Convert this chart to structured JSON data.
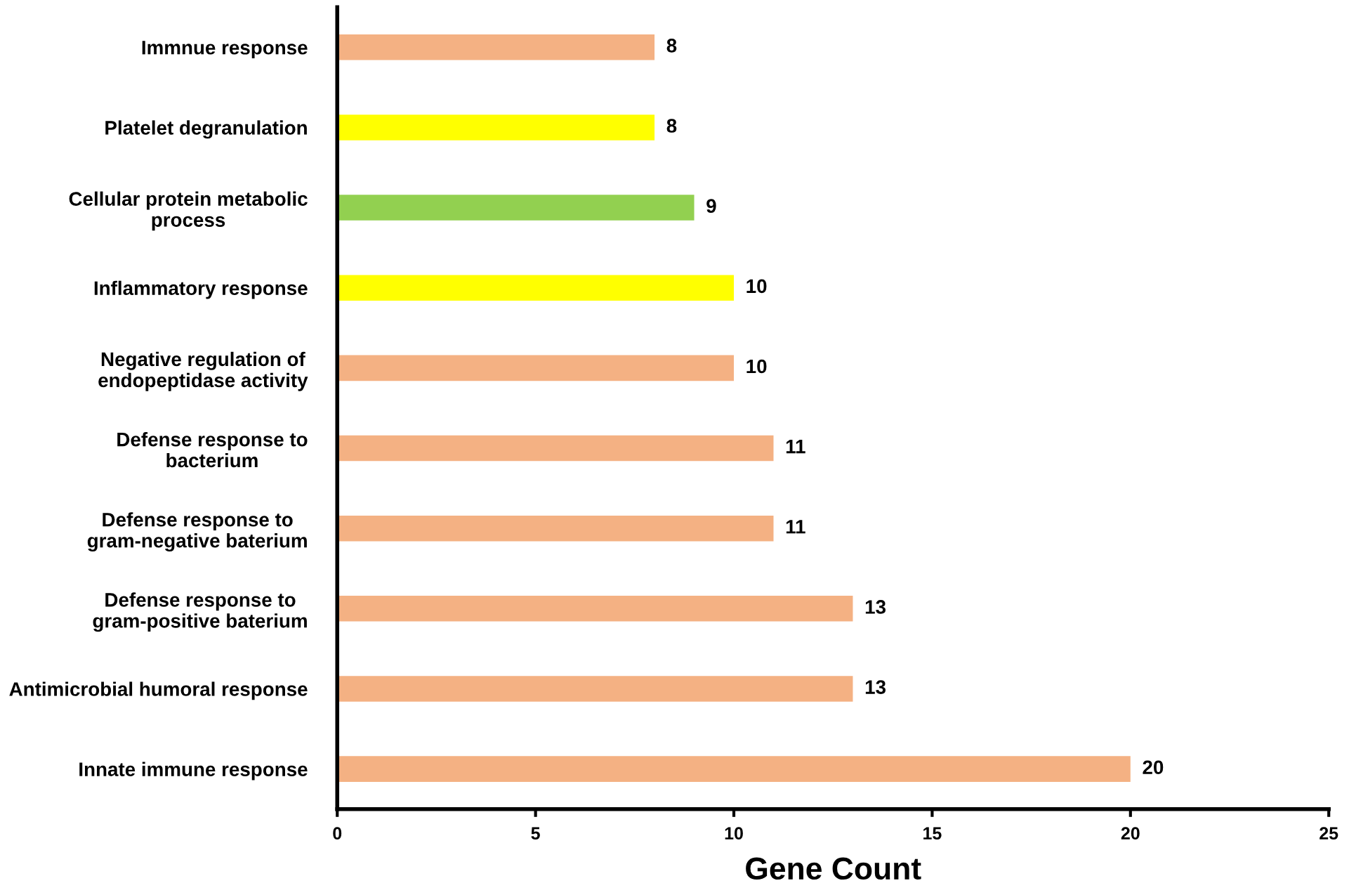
{
  "chart_data": {
    "type": "bar",
    "orientation": "horizontal",
    "xlabel": "Gene Count",
    "categories": [
      "Immnue response",
      "Platelet degranulation",
      "Cellular protein metabolic\nprocess",
      "Inflammatory response",
      "Negative regulation of\nendopeptidase activity",
      "Defense response to\nbacterium",
      "Defense response to\ngram-negative baterium",
      "Defense response to\ngram-positive baterium",
      "Antimicrobial humoral response",
      "Innate immune response"
    ],
    "values": [
      8,
      8,
      9,
      10,
      10,
      11,
      11,
      13,
      13,
      20
    ],
    "colors": [
      "#f4b183",
      "#ffff00",
      "#92d050",
      "#ffff00",
      "#f4b183",
      "#f4b183",
      "#f4b183",
      "#f4b183",
      "#f4b183",
      "#f4b183"
    ],
    "xlim": [
      0,
      25
    ],
    "xticks": [
      0,
      5,
      10,
      15,
      20,
      25
    ],
    "data_labels": true,
    "grid": false
  }
}
